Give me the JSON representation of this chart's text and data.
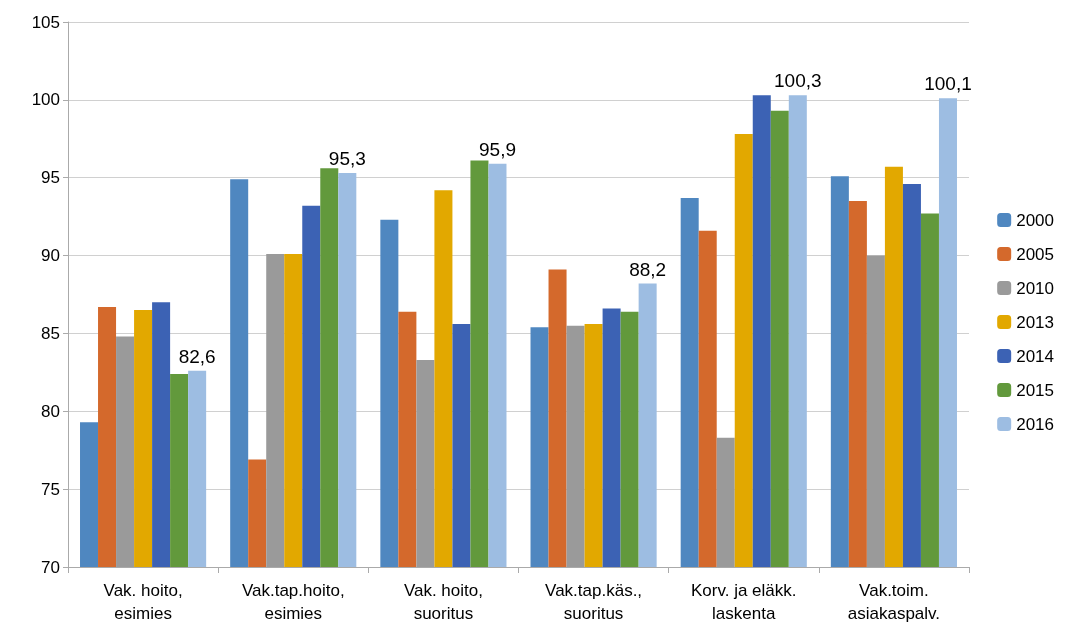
{
  "chart_data": {
    "type": "bar",
    "categories": [
      "Vak. hoito,\nesimies",
      "Vak.tap.hoito,\nesimies",
      "Vak. hoito,\nsuoritus",
      "Vak.tap.käs.,\nsuoritus",
      "Korv. ja eläkk.\nlaskenta",
      "Vak.toim.\nasiakaspalv."
    ],
    "series": [
      {
        "name": "2000",
        "color": "#4f87c0",
        "values": [
          79.3,
          94.9,
          92.3,
          85.4,
          93.7,
          95.1
        ]
      },
      {
        "name": "2005",
        "color": "#d4692c",
        "values": [
          86.7,
          76.9,
          86.4,
          89.1,
          91.6,
          93.5
        ]
      },
      {
        "name": "2010",
        "color": "#9a9a9a",
        "values": [
          84.8,
          90.1,
          83.3,
          85.5,
          78.3,
          90.0
        ]
      },
      {
        "name": "2013",
        "color": "#e2a800",
        "values": [
          86.5,
          90.1,
          94.2,
          85.6,
          97.8,
          95.7
        ]
      },
      {
        "name": "2014",
        "color": "#3c62b4",
        "values": [
          87.0,
          93.2,
          85.6,
          86.6,
          100.3,
          94.6
        ]
      },
      {
        "name": "2015",
        "color": "#62993c",
        "values": [
          82.4,
          95.6,
          96.1,
          86.4,
          99.3,
          92.7
        ]
      },
      {
        "name": "2016",
        "color": "#9dbde2",
        "values": [
          82.6,
          95.3,
          95.9,
          88.2,
          100.3,
          100.1
        ],
        "value_labels": [
          "82,6",
          "95,3",
          "95,9",
          "88,2",
          "100,3",
          "100,1"
        ]
      }
    ],
    "ylim": [
      70,
      105
    ],
    "yticks": [
      70,
      75,
      80,
      85,
      90,
      95,
      100,
      105
    ],
    "grid": "y",
    "legend": "right"
  }
}
